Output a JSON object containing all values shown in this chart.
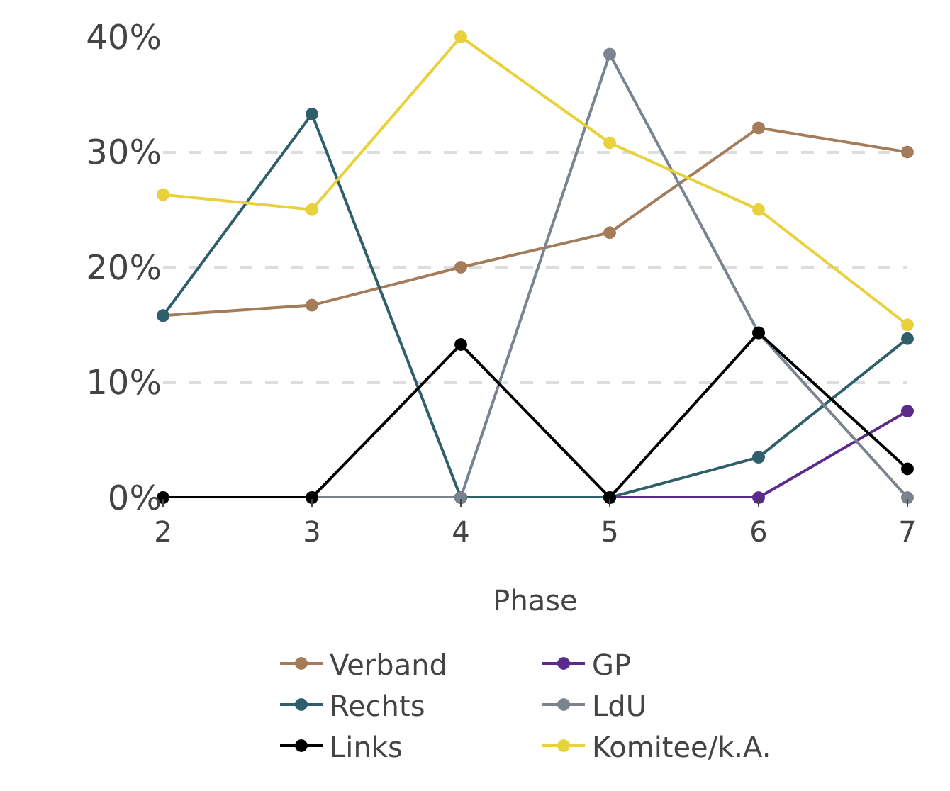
{
  "chart_data": {
    "type": "line",
    "xlabel": "Phase",
    "x": [
      2,
      3,
      4,
      5,
      6,
      7
    ],
    "series": [
      {
        "name": "Verband",
        "color": "#a57c59",
        "values": [
          15.8,
          16.7,
          20.0,
          23.0,
          32.1,
          30.0
        ]
      },
      {
        "name": "GP",
        "color": "#5b2a8c",
        "values": [
          0,
          0,
          0,
          0,
          0,
          7.5
        ]
      },
      {
        "name": "Rechts",
        "color": "#2f5f6b",
        "values": [
          15.8,
          33.3,
          0,
          0,
          3.5,
          13.8
        ]
      },
      {
        "name": "LdU",
        "color": "#7a838e",
        "values": [
          0,
          0,
          0,
          38.5,
          14.3,
          0
        ]
      },
      {
        "name": "Links",
        "color": "#000000",
        "values": [
          0,
          0,
          13.3,
          0,
          14.3,
          2.5
        ]
      },
      {
        "name": "Komitee/k.A.",
        "color": "#e8d13a",
        "values": [
          26.3,
          25.0,
          40.0,
          30.8,
          25.0,
          15.0
        ]
      }
    ],
    "xlim": [
      2,
      7
    ],
    "xticks": [
      2,
      3,
      4,
      5,
      6,
      7
    ],
    "ylim": [
      0,
      40
    ],
    "yticks": [
      {
        "value": 0,
        "label": "0%"
      },
      {
        "value": 10,
        "label": "10%"
      },
      {
        "value": 20,
        "label": "20%"
      },
      {
        "value": 30,
        "label": "30%"
      },
      {
        "value": 40,
        "label": "40%"
      }
    ],
    "grid": "y",
    "legend": "bottom",
    "marker": "circle",
    "line_style": "solid"
  }
}
